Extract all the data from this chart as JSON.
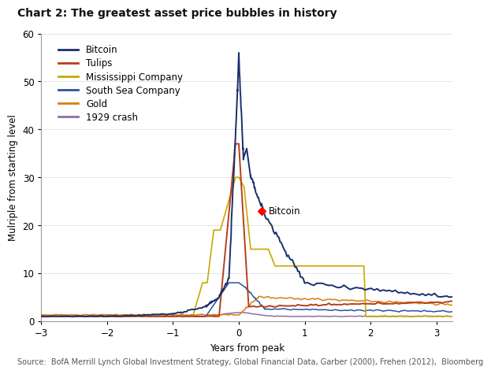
{
  "title": "Chart 2: The greatest asset price bubbles in history",
  "xlabel": "Years from peak",
  "ylabel": "Mulriple from starting level",
  "source": "Source:  BofA Merrill Lynch Global Investment Strategy, Global Financial Data, Garber (2000), Frehen (2012),  Bloomberg",
  "xlim": [
    -3,
    3.25
  ],
  "ylim": [
    0,
    60
  ],
  "yticks": [
    0,
    10,
    20,
    30,
    40,
    50,
    60
  ],
  "xticks": [
    -3,
    -2,
    -1,
    0,
    1,
    2,
    3
  ],
  "colors": {
    "Bitcoin": "#1a2e6e",
    "Tulips": "#b5401a",
    "Mississippi": "#c9a800",
    "SouthSea": "#2a52a0",
    "Gold": "#d97d10",
    "Crash1929": "#8e6ea6"
  },
  "bitcoin_marker_x": 0.35,
  "bitcoin_marker_y": 23.0,
  "title_fontsize": 10,
  "axis_fontsize": 8.5,
  "tick_fontsize": 8.5,
  "legend_fontsize": 8.5,
  "source_fontsize": 7.0,
  "title_line_color": "#4472c4",
  "bg_color": "#ffffff"
}
